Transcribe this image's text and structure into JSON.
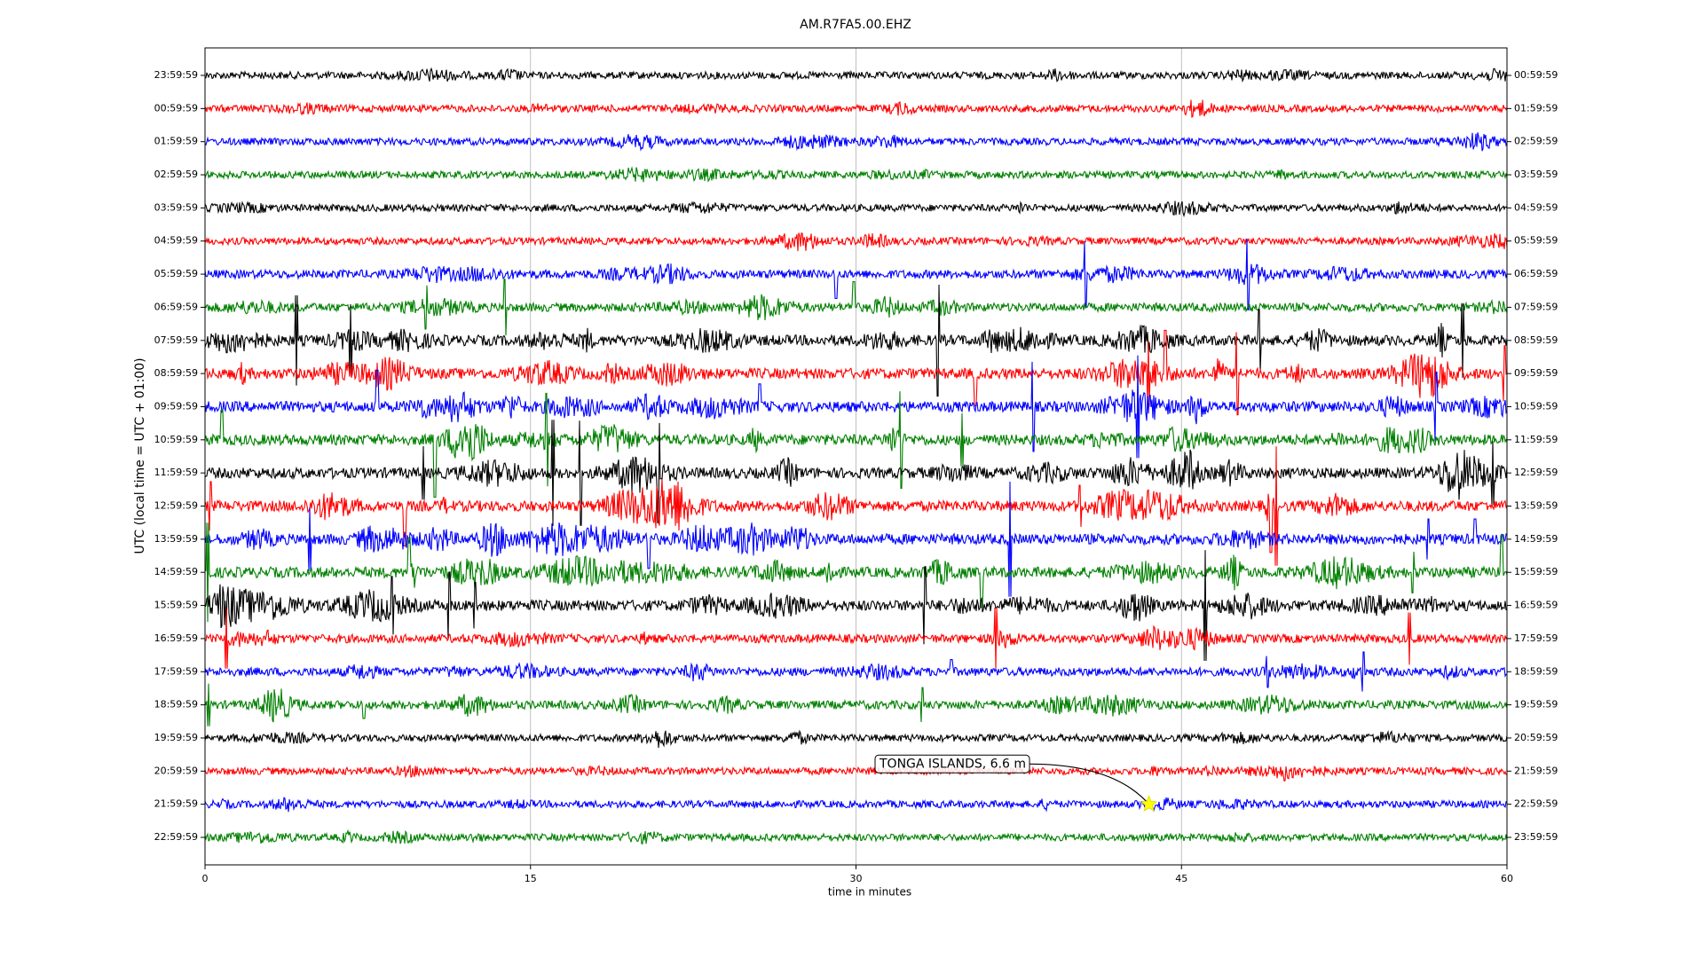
{
  "chart_data": {
    "type": "helicorder",
    "title": "AM.R7FA5.00.EHZ",
    "xlabel": "time in minutes",
    "ylabel": "UTC (local time = UTC + 01:00)",
    "xlim": [
      0,
      60
    ],
    "xticks": [
      0,
      15,
      30,
      45,
      60
    ],
    "grid": true,
    "colors": [
      "#000000",
      "#ff0000",
      "#0000ff",
      "#008000"
    ],
    "left_labels": [
      "23:59:59",
      "00:59:59",
      "01:59:59",
      "02:59:59",
      "03:59:59",
      "04:59:59",
      "05:59:59",
      "06:59:59",
      "07:59:59",
      "08:59:59",
      "09:59:59",
      "10:59:59",
      "11:59:59",
      "12:59:59",
      "13:59:59",
      "14:59:59",
      "15:59:59",
      "16:59:59",
      "17:59:59",
      "18:59:59",
      "19:59:59",
      "20:59:59",
      "21:59:59",
      "22:59:59"
    ],
    "right_labels": [
      "00:59:59",
      "01:59:59",
      "02:59:59",
      "03:59:59",
      "04:59:59",
      "05:59:59",
      "06:59:59",
      "07:59:59",
      "08:59:59",
      "09:59:59",
      "10:59:59",
      "11:59:59",
      "12:59:59",
      "13:59:59",
      "14:59:59",
      "15:59:59",
      "16:59:59",
      "17:59:59",
      "18:59:59",
      "19:59:59",
      "20:59:59",
      "21:59:59",
      "22:59:59",
      "23:59:59"
    ],
    "annotation": {
      "text": "TONGA ISLANDS, 6.6 m",
      "x": 43.5,
      "row": "21:59:59"
    }
  }
}
